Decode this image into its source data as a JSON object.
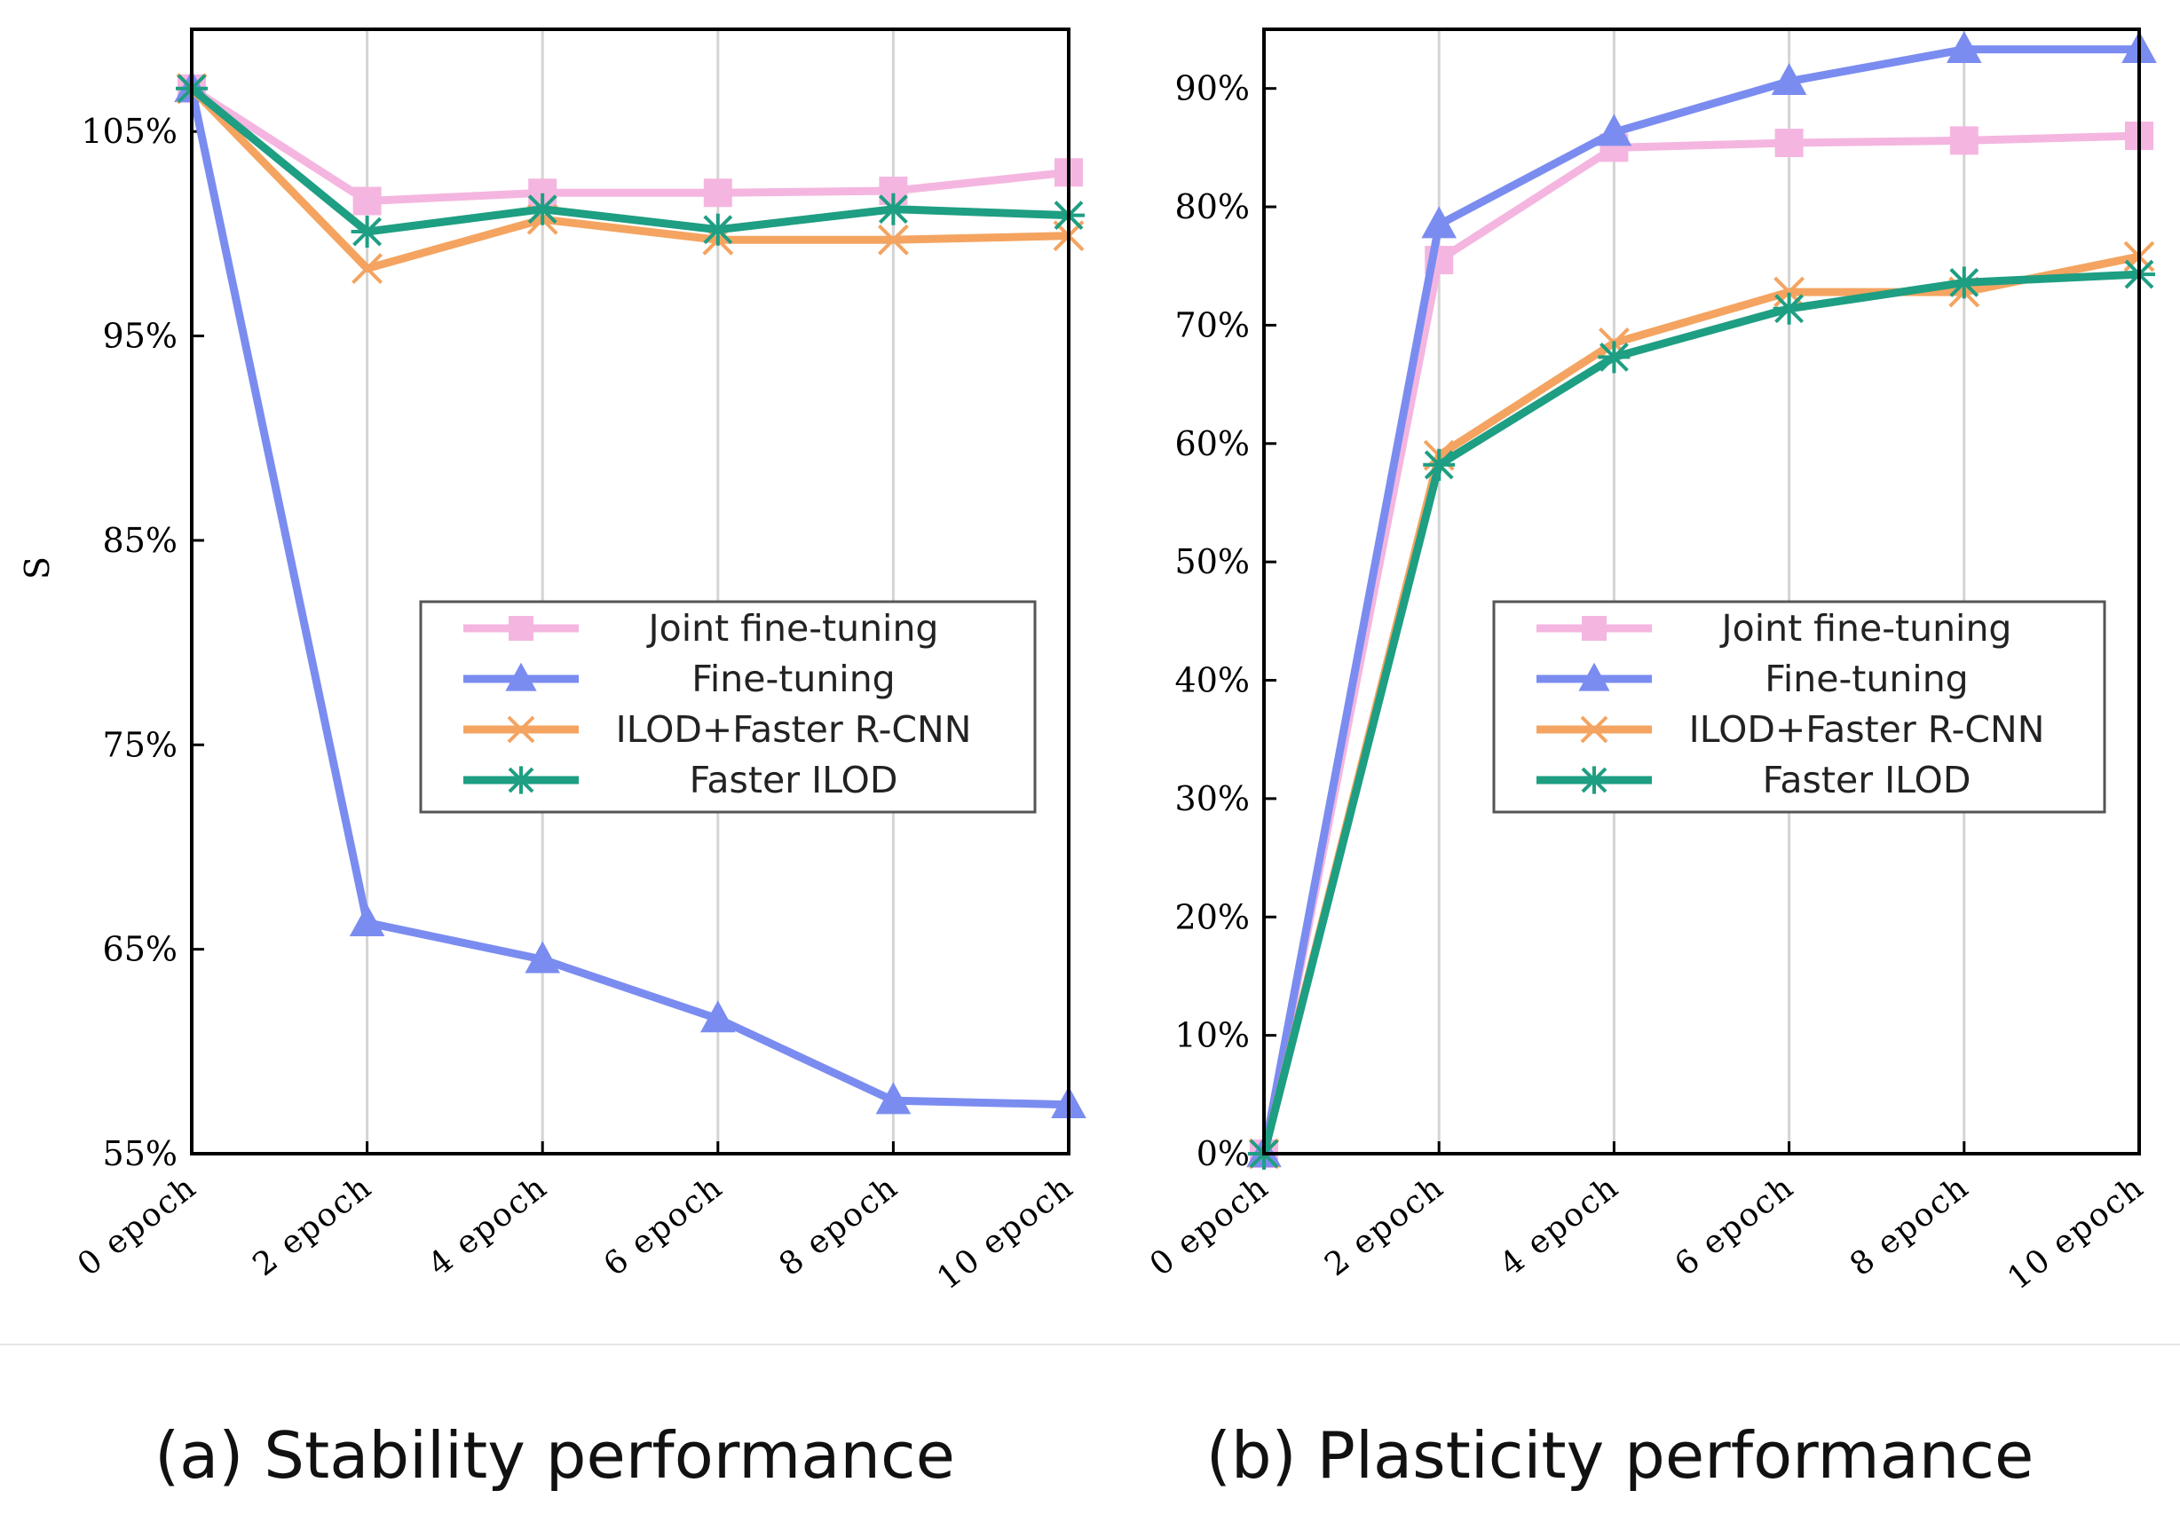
{
  "chart_data": [
    {
      "type": "line",
      "caption": "(a) Stability performance",
      "ylabel": "S",
      "categories": [
        "0 epoch",
        "2 epoch",
        "4 epoch",
        "6 epoch",
        "8 epoch",
        "10 epoch"
      ],
      "ylim": [
        55,
        110
      ],
      "yticks": [
        55,
        65,
        75,
        85,
        95,
        105
      ],
      "ytick_labels": [
        "55%",
        "65%",
        "75%",
        "85%",
        "95%",
        "105%"
      ],
      "grid": "vertical",
      "legend_position": "center-right",
      "series": [
        {
          "name": "Joint fine-tuning",
          "color": "#f4b6e0",
          "marker": "square",
          "values": [
            107.1,
            101.6,
            102.0,
            102.0,
            102.1,
            103.0
          ]
        },
        {
          "name": "Fine-tuning",
          "color": "#7b8cf0",
          "marker": "triangle",
          "values": [
            107.1,
            66.3,
            64.5,
            61.6,
            57.6,
            57.4
          ]
        },
        {
          "name": "ILOD+Faster R-CNN",
          "color": "#f4a460",
          "marker": "x",
          "values": [
            107.1,
            98.3,
            100.7,
            99.7,
            99.7,
            99.9
          ]
        },
        {
          "name": "Faster ILOD",
          "color": "#1e9e82",
          "marker": "asterisk",
          "values": [
            107.1,
            100.1,
            101.2,
            100.2,
            101.2,
            100.9
          ]
        }
      ]
    },
    {
      "type": "line",
      "caption": "(b) Plasticity performance",
      "ylabel": "",
      "categories": [
        "0 epoch",
        "2 epoch",
        "4 epoch",
        "6 epoch",
        "8 epoch",
        "10 epoch"
      ],
      "ylim": [
        0,
        95
      ],
      "yticks": [
        0,
        10,
        20,
        30,
        40,
        50,
        60,
        70,
        80,
        90
      ],
      "ytick_labels": [
        "0%",
        "10%",
        "20%",
        "30%",
        "40%",
        "50%",
        "60%",
        "70%",
        "80%",
        "90%"
      ],
      "grid": "vertical",
      "legend_position": "center-right",
      "series": [
        {
          "name": "Joint fine-tuning",
          "color": "#f4b6e0",
          "marker": "square",
          "values": [
            0,
            75.5,
            85.0,
            85.4,
            85.6,
            86.0
          ]
        },
        {
          "name": "Fine-tuning",
          "color": "#7b8cf0",
          "marker": "triangle",
          "values": [
            0,
            78.5,
            86.3,
            90.6,
            93.3,
            93.3
          ]
        },
        {
          "name": "ILOD+Faster R-CNN",
          "color": "#f4a460",
          "marker": "x",
          "values": [
            0,
            59.0,
            68.5,
            72.8,
            72.8,
            75.8
          ]
        },
        {
          "name": "Faster ILOD",
          "color": "#1e9e82",
          "marker": "asterisk",
          "values": [
            0,
            58.2,
            67.3,
            71.4,
            73.6,
            74.3
          ]
        }
      ]
    }
  ]
}
